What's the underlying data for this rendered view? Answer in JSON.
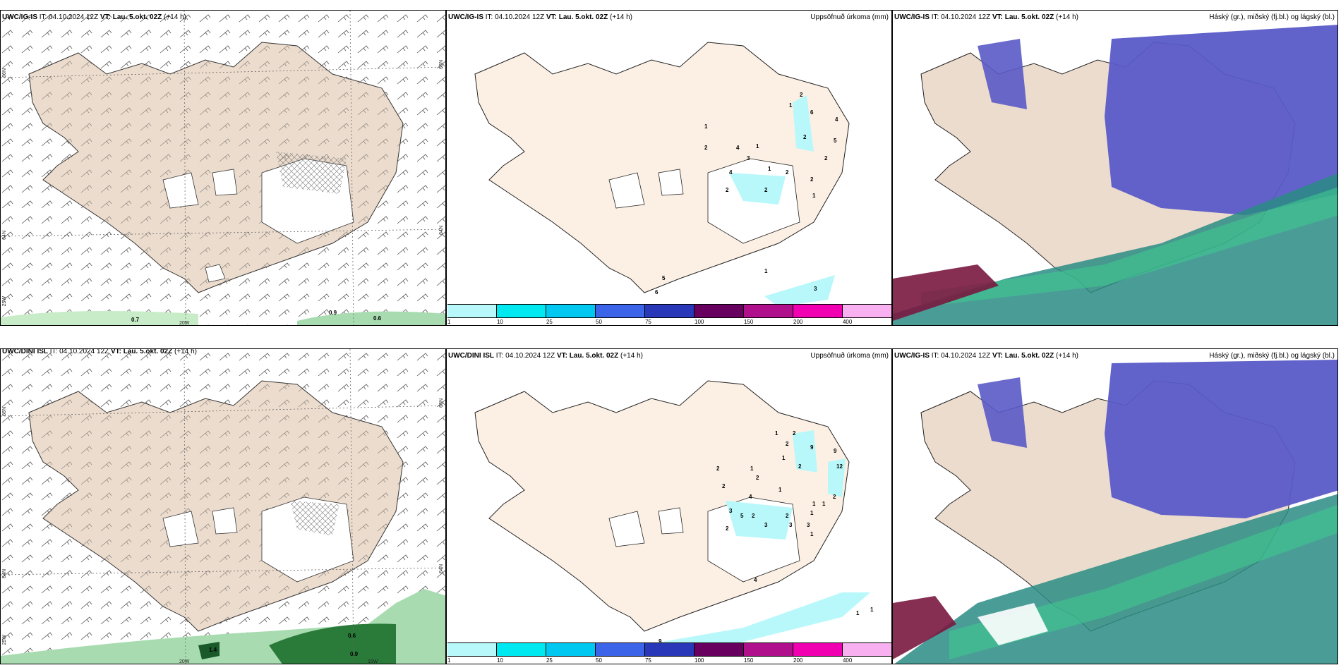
{
  "panels": {
    "p1": {
      "model": "UWC/IG-IS",
      "it_label": "IT:",
      "it": "04.10.2024 12Z",
      "vt_label": "VT:",
      "vt": "Lau. 5.okt. 02Z",
      "lead": "(+14 h)",
      "right": ""
    },
    "p2": {
      "model": "UWC/IG-IS",
      "it_label": "IT:",
      "it": "04.10.2024 12Z",
      "vt_label": "VT:",
      "vt": "Lau. 5.okt. 02Z",
      "lead": "(+14 h)",
      "right": "Uppsöfnuð úrkoma (mm)"
    },
    "p3": {
      "model": "UWC/IG-IS",
      "it_label": "IT:",
      "it": "04.10.2024 12Z",
      "vt_label": "VT:",
      "vt": "Lau. 5.okt. 02Z",
      "lead": "(+14 h)",
      "right": "Háský (gr.), miðský (fj.bl.) og lágský (bl.)"
    },
    "p4": {
      "model": "UWC/DINI ISL",
      "it_label": "IT:",
      "it": "04.10.2024 12Z",
      "vt_label": "VT:",
      "vt": "Lau. 5.okt. 02Z",
      "lead": "(+14 h)",
      "right": ""
    },
    "p5": {
      "model": "UWC/DINI ISL",
      "it_label": "IT:",
      "it": "04.10.2024 12Z",
      "vt_label": "VT:",
      "vt": "Lau. 5.okt. 02Z",
      "lead": "(+14 h)",
      "right": "Uppsöfnuð úrkoma (mm)"
    },
    "p6": {
      "model": "UWC/IG-IS",
      "it_label": "IT:",
      "it": "04.10.2024 12Z",
      "vt_label": "VT:",
      "vt": "Lau. 5.okt. 02Z",
      "lead": "(+14 h)",
      "right": "Háský (gr.), miðský (fj.bl.) og lágský (bl.)"
    }
  },
  "axes": {
    "lat66": "66N",
    "lat64": "64N",
    "lon25": "25W",
    "lon20": "20W",
    "lon15": "15W"
  },
  "gust_labels_top": [
    "0.7",
    "0.9",
    "0.6"
  ],
  "gust_labels_bottom": [
    "1.4",
    "0.6",
    "0.9"
  ],
  "precip_top": [
    "1",
    "2",
    "6",
    "4",
    "5",
    "2",
    "2",
    "1",
    "3",
    "1",
    "2",
    "2",
    "4",
    "2",
    "2",
    "2",
    "1",
    "1",
    "3",
    "4",
    "5",
    "6",
    "1"
  ],
  "precip_bottom": [
    "1",
    "2",
    "9",
    "2",
    "1",
    "9",
    "12",
    "2",
    "2",
    "1",
    "2",
    "2",
    "4",
    "1",
    "1",
    "1",
    "2",
    "3",
    "5",
    "2",
    "3",
    "2",
    "3",
    "3",
    "1",
    "2",
    "1",
    "4",
    "9",
    "1",
    "1"
  ],
  "legend": {
    "ticks": [
      "1",
      "10",
      "25",
      "50",
      "75",
      "100",
      "150",
      "200",
      "400"
    ],
    "colors": [
      "#b8f8fa",
      "#00e8f0",
      "#00c8f0",
      "#3c64e8",
      "#2838b8",
      "#680060",
      "#b0108c",
      "#f000b0",
      "#f8b0f0"
    ]
  },
  "colors": {
    "land": "#ecdccd",
    "land_precip": "#fcf0e4",
    "high": "#5a5ac8",
    "low": "#2a8c84",
    "mid": "#40c890"
  }
}
